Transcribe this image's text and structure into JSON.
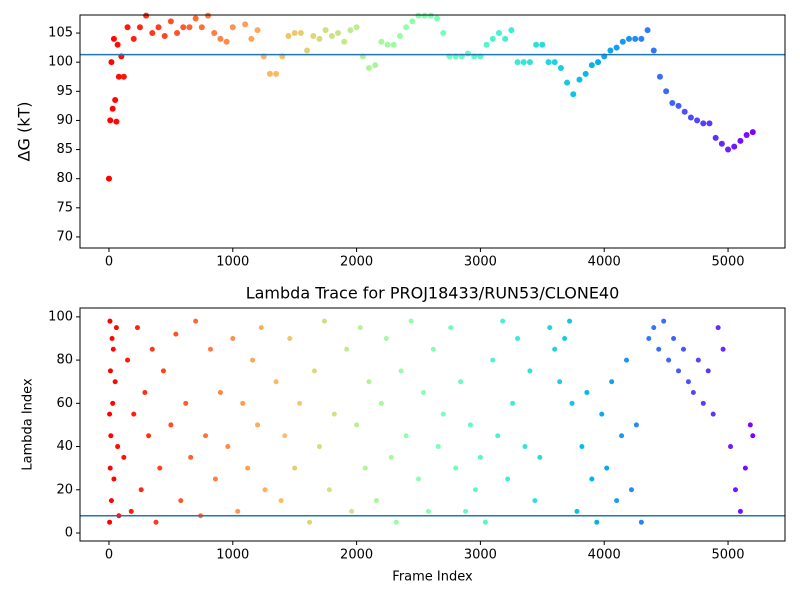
{
  "chart_data": [
    {
      "type": "scatter",
      "ylabel": "ΔG (kT)",
      "colormap": "rainbow_r",
      "x": [
        0,
        10,
        20,
        30,
        40,
        50,
        60,
        70,
        80,
        100,
        120,
        150,
        200,
        250,
        300,
        350,
        400,
        450,
        500,
        550,
        600,
        650,
        700,
        750,
        800,
        850,
        900,
        950,
        1000,
        1100,
        1150,
        1200,
        1250,
        1300,
        1350,
        1400,
        1450,
        1500,
        1550,
        1600,
        1650,
        1700,
        1750,
        1800,
        1850,
        1900,
        1950,
        2000,
        2050,
        2100,
        2150,
        2200,
        2250,
        2300,
        2350,
        2400,
        2450,
        2500,
        2550,
        2600,
        2650,
        2700,
        2750,
        2800,
        2850,
        2900,
        2950,
        3000,
        3050,
        3100,
        3150,
        3200,
        3250,
        3300,
        3350,
        3400,
        3450,
        3500,
        3550,
        3600,
        3650,
        3700,
        3750,
        3800,
        3850,
        3900,
        3950,
        4000,
        4050,
        4100,
        4150,
        4200,
        4250,
        4300,
        4350,
        4400,
        4450,
        4500,
        4550,
        4600,
        4650,
        4700,
        4750,
        4800,
        4850,
        4900,
        4950,
        5000,
        5050,
        5100,
        5150,
        5200
      ],
      "values": [
        80,
        90,
        100,
        92,
        104,
        93.5,
        89.8,
        103,
        97.5,
        101,
        97.5,
        106,
        104,
        106,
        108,
        105,
        106,
        104.5,
        107,
        105,
        106,
        106,
        107.5,
        106,
        108,
        105,
        104,
        103.5,
        106,
        106.5,
        104,
        105.5,
        101,
        98,
        98,
        101,
        104.5,
        105,
        105,
        102,
        104.5,
        104,
        105.5,
        104.5,
        105,
        103.5,
        105.5,
        106,
        101,
        99,
        99.5,
        103.5,
        103,
        103,
        104.5,
        106,
        107,
        108,
        108,
        108,
        107.5,
        105,
        101,
        101,
        101,
        101.5,
        101,
        101,
        103,
        104,
        105,
        104,
        105.5,
        100,
        100,
        100,
        103,
        103,
        100,
        100,
        99,
        96.5,
        94.5,
        97,
        98,
        99.5,
        100,
        101,
        102,
        102.5,
        103.5,
        104,
        104,
        104,
        105.5,
        102,
        97.5,
        95,
        93,
        92.5,
        91.5,
        90.5,
        90,
        89.5,
        89.5,
        87,
        86,
        85,
        85.5,
        86.5,
        87.5,
        88
      ],
      "xlim": [
        -234,
        5460
      ],
      "ylim": [
        68.1,
        108.1
      ],
      "xticks": [
        0,
        1000,
        2000,
        3000,
        4000,
        5000
      ],
      "yticks": [
        70,
        75,
        80,
        85,
        90,
        95,
        100,
        105
      ],
      "hline": {
        "value": 101.3,
        "color": "#1f77b4"
      }
    },
    {
      "type": "scatter",
      "title": "Lambda Trace for PROJ18433/RUN53/CLONE40",
      "xlabel": "Frame Index",
      "ylabel": "Lambda Index",
      "colormap": "rainbow_r",
      "x": [
        5,
        5,
        8,
        10,
        12,
        15,
        20,
        25,
        30,
        35,
        40,
        50,
        60,
        70,
        80,
        120,
        150,
        180,
        200,
        230,
        260,
        290,
        320,
        350,
        380,
        410,
        440,
        500,
        540,
        580,
        620,
        660,
        700,
        740,
        780,
        820,
        860,
        900,
        960,
        1000,
        1040,
        1080,
        1120,
        1160,
        1200,
        1230,
        1260,
        1350,
        1390,
        1420,
        1460,
        1500,
        1540,
        1620,
        1660,
        1700,
        1740,
        1780,
        1820,
        1920,
        1960,
        2000,
        2030,
        2070,
        2100,
        2160,
        2200,
        2240,
        2280,
        2320,
        2360,
        2400,
        2440,
        2500,
        2540,
        2580,
        2620,
        2660,
        2700,
        2760,
        2800,
        2840,
        2880,
        2920,
        2960,
        3000,
        3040,
        3100,
        3140,
        3180,
        3220,
        3260,
        3300,
        3360,
        3400,
        3440,
        3480,
        3560,
        3600,
        3640,
        3680,
        3720,
        3740,
        3780,
        3820,
        3860,
        3900,
        3940,
        3980,
        4020,
        4060,
        4100,
        4140,
        4180,
        4220,
        4260,
        4300,
        4360,
        4400,
        4440,
        4480,
        4520,
        4560,
        4600,
        4640,
        4680,
        4720,
        4760,
        4800,
        4840,
        4880,
        4920,
        4960,
        5020,
        5060,
        5100,
        5140,
        5180,
        5200
      ],
      "values": [
        5,
        55,
        98,
        30,
        75,
        45,
        15,
        90,
        60,
        85,
        25,
        70,
        95,
        40,
        8,
        35,
        80,
        10,
        55,
        95,
        20,
        65,
        45,
        85,
        5,
        30,
        75,
        50,
        92,
        15,
        60,
        35,
        98,
        8,
        45,
        85,
        25,
        65,
        40,
        90,
        10,
        60,
        30,
        80,
        50,
        95,
        20,
        70,
        15,
        45,
        90,
        30,
        60,
        5,
        75,
        40,
        98,
        20,
        55,
        85,
        10,
        50,
        95,
        30,
        70,
        15,
        60,
        90,
        35,
        5,
        75,
        45,
        98,
        25,
        65,
        10,
        85,
        40,
        55,
        95,
        30,
        70,
        10,
        50,
        20,
        35,
        5,
        80,
        45,
        98,
        25,
        60,
        90,
        40,
        75,
        15,
        35,
        95,
        85,
        70,
        90,
        98,
        60,
        10,
        40,
        65,
        25,
        5,
        55,
        30,
        70,
        15,
        45,
        80,
        20,
        50,
        5,
        90,
        95,
        85,
        98,
        80,
        90,
        75,
        85,
        70,
        65,
        80,
        60,
        75,
        55,
        95,
        85,
        40,
        20,
        10,
        30,
        50,
        45
      ],
      "xlim": [
        -234,
        5460
      ],
      "ylim": [
        -3.7,
        104.1
      ],
      "xticks": [
        0,
        1000,
        2000,
        3000,
        4000,
        5000
      ],
      "yticks": [
        0,
        20,
        40,
        60,
        80,
        100
      ],
      "hline": {
        "value": 8,
        "color": "#1f77b4"
      }
    }
  ]
}
